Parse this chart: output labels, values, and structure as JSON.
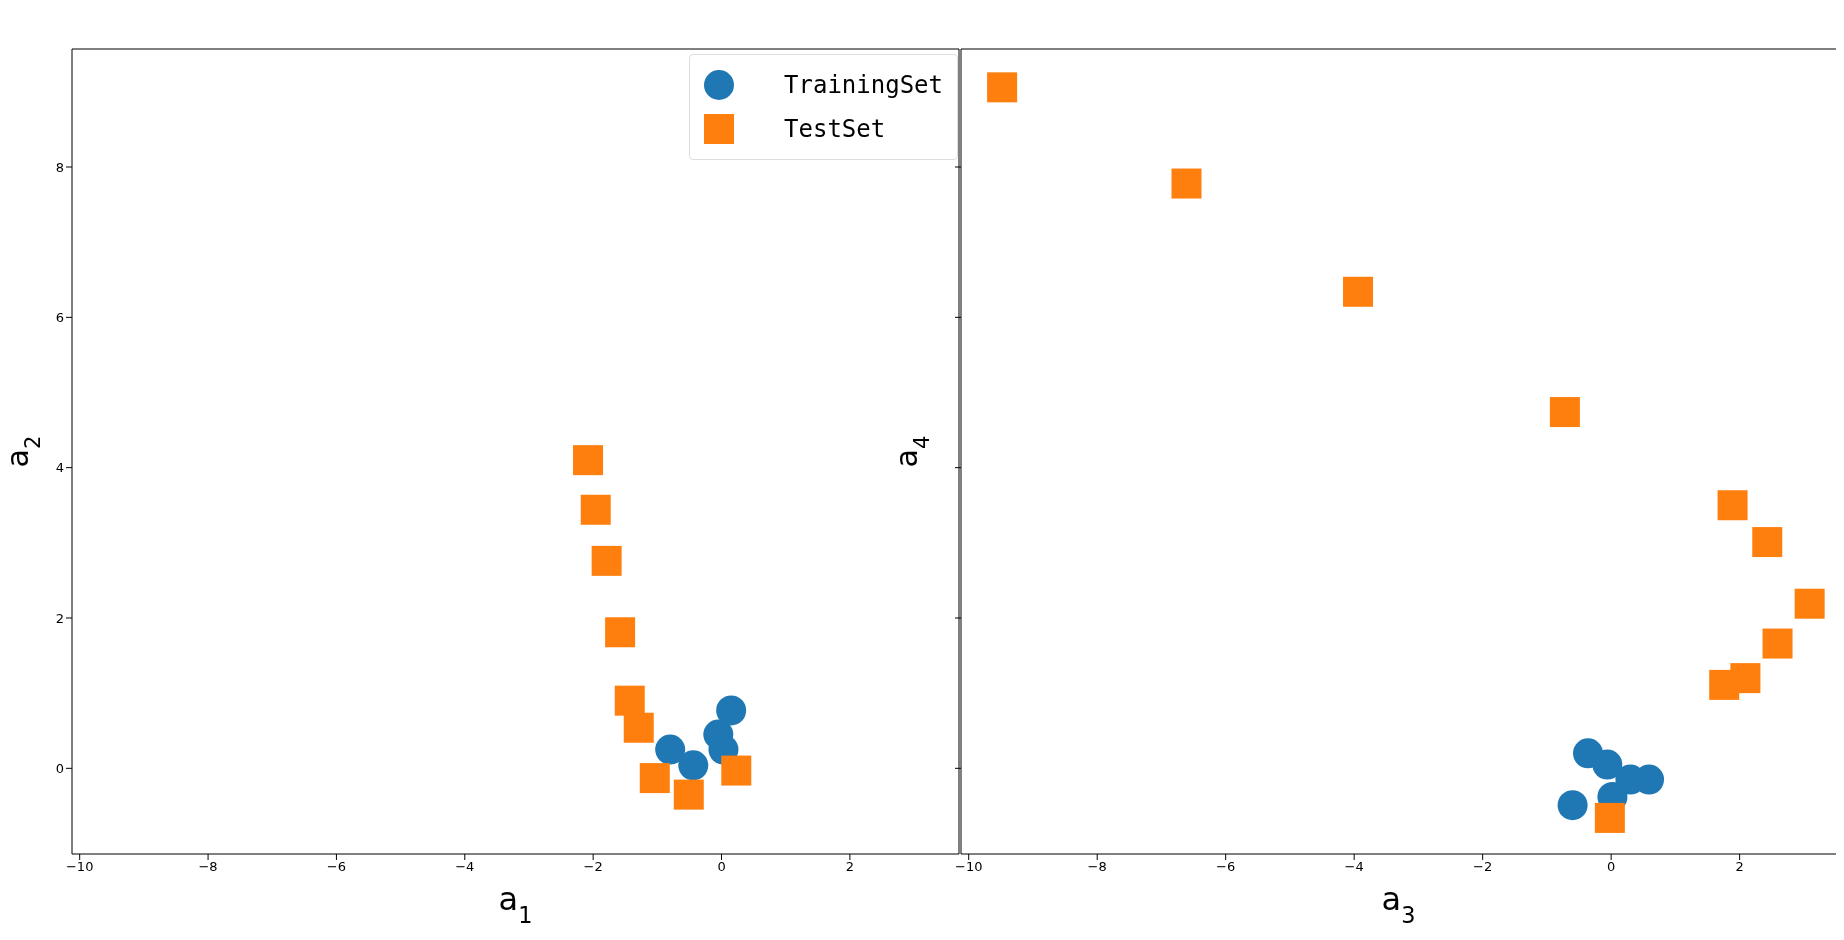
{
  "chart_data": [
    {
      "type": "scatter",
      "xlabel": "a$_{1}$",
      "ylabel": "a$_{2}$",
      "xlim": [
        -10.12,
        3.7
      ],
      "ylim": [
        -1.14,
        9.57
      ],
      "xticks": [
        -10,
        -8,
        -6,
        -4,
        -2,
        0,
        2
      ],
      "yticks": [
        0,
        2,
        4,
        6,
        8
      ],
      "legend": "top right",
      "series": [
        {
          "name": "TrainingSet",
          "color": "#1f77b4",
          "marker": "circle",
          "x": [
            -0.8,
            0.15,
            -0.44,
            -0.05,
            0.03
          ],
          "values": [
            0.25,
            0.77,
            0.04,
            0.45,
            0.25
          ]
        },
        {
          "name": "TestSet",
          "color": "#ff7f0e",
          "marker": "square",
          "x": [
            -2.08,
            -1.96,
            -1.79,
            -1.58,
            -1.43,
            -1.29,
            -1.04,
            -0.51,
            0.23
          ],
          "values": [
            4.1,
            3.44,
            2.76,
            1.81,
            0.9,
            0.54,
            -0.13,
            -0.35,
            -0.03
          ]
        }
      ]
    },
    {
      "type": "scatter",
      "xlabel": "a$_{3}$",
      "ylabel": "a$_{4}$",
      "xlim": [
        -10.12,
        3.5
      ],
      "ylim": [
        -1.14,
        9.57
      ],
      "xticks": [
        -10,
        -8,
        -6,
        -4,
        -2,
        0,
        2
      ],
      "yticks": [
        0,
        2,
        4,
        6,
        8
      ],
      "tick_labels": "x",
      "series": [
        {
          "color": "#1f77b4",
          "marker": "circle",
          "x": [
            -0.36,
            -0.6,
            0.3,
            0.59,
            0.02,
            -0.06
          ],
          "values": [
            0.2,
            -0.49,
            -0.15,
            -0.15,
            -0.38,
            0.05
          ]
        },
        {
          "color": "#ff7f0e",
          "marker": "square",
          "x": [
            -9.48,
            -6.61,
            -3.94,
            -0.72,
            1.89,
            2.43,
            3.09,
            2.59,
            2.09,
            1.76,
            -0.02
          ],
          "values": [
            9.06,
            7.78,
            6.34,
            4.74,
            3.5,
            3.01,
            2.19,
            1.66,
            1.2,
            1.11,
            -0.66
          ]
        }
      ]
    }
  ]
}
